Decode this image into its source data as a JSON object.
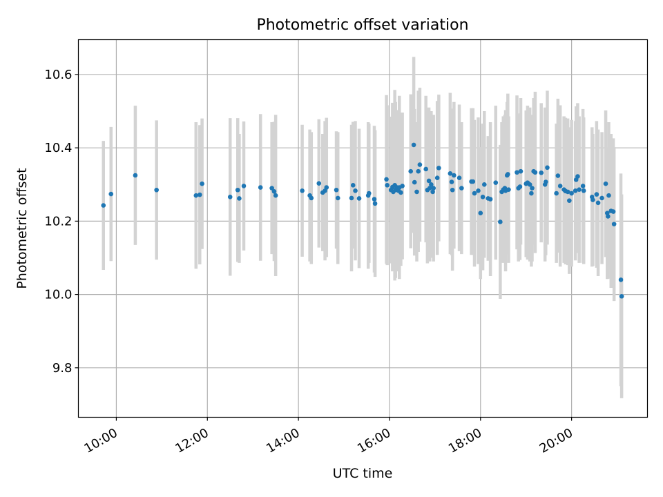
{
  "chart_data": {
    "type": "scatter",
    "title": "Photometric offset variation",
    "xlabel": "UTC time",
    "ylabel": "Photometric offset",
    "x_unit": "hours UTC",
    "xlim": [
      "09:10",
      "21:40"
    ],
    "ylim": [
      9.665,
      10.695
    ],
    "x_ticks": [
      {
        "value": "10:00",
        "label": "10:00"
      },
      {
        "value": "12:00",
        "label": "12:00"
      },
      {
        "value": "14:00",
        "label": "14:00"
      },
      {
        "value": "16:00",
        "label": "16:00"
      },
      {
        "value": "18:00",
        "label": "18:00"
      },
      {
        "value": "20:00",
        "label": "20:00"
      }
    ],
    "y_ticks": [
      {
        "value": 9.8,
        "label": "9.8"
      },
      {
        "value": 10.0,
        "label": "10.0"
      },
      {
        "value": 10.2,
        "label": "10.2"
      },
      {
        "value": 10.4,
        "label": "10.4"
      },
      {
        "value": 10.6,
        "label": "10.6"
      }
    ],
    "grid": true,
    "marker_color": "#1f77b4",
    "errorbar_color": "#d3d3d3",
    "series": [
      {
        "points": [
          {
            "x": "09:43",
            "y": 10.243,
            "err": 0.176
          },
          {
            "x": "09:53",
            "y": 10.274,
            "err": 0.183
          },
          {
            "x": "10:25",
            "y": 10.325,
            "err": 0.19
          },
          {
            "x": "10:53",
            "y": 10.285,
            "err": 0.19
          },
          {
            "x": "11:45",
            "y": 10.27,
            "err": 0.2
          },
          {
            "x": "11:50",
            "y": 10.272,
            "err": 0.19
          },
          {
            "x": "11:53",
            "y": 10.302,
            "err": 0.178
          },
          {
            "x": "12:30",
            "y": 10.266,
            "err": 0.215
          },
          {
            "x": "12:40",
            "y": 10.285,
            "err": 0.196
          },
          {
            "x": "12:42",
            "y": 10.262,
            "err": 0.176
          },
          {
            "x": "12:48",
            "y": 10.296,
            "err": 0.176
          },
          {
            "x": "13:10",
            "y": 10.292,
            "err": 0.2
          },
          {
            "x": "13:25",
            "y": 10.29,
            "err": 0.18
          },
          {
            "x": "13:28",
            "y": 10.281,
            "err": 0.19
          },
          {
            "x": "13:30",
            "y": 10.27,
            "err": 0.22
          },
          {
            "x": "14:05",
            "y": 10.283,
            "err": 0.18
          },
          {
            "x": "14:15",
            "y": 10.27,
            "err": 0.18
          },
          {
            "x": "14:17",
            "y": 10.263,
            "err": 0.18
          },
          {
            "x": "14:27",
            "y": 10.303,
            "err": 0.175
          },
          {
            "x": "14:32",
            "y": 10.278,
            "err": 0.16
          },
          {
            "x": "14:35",
            "y": 10.283,
            "err": 0.19
          },
          {
            "x": "14:37",
            "y": 10.292,
            "err": 0.19
          },
          {
            "x": "14:50",
            "y": 10.285,
            "err": 0.16
          },
          {
            "x": "14:52",
            "y": 10.263,
            "err": 0.18
          },
          {
            "x": "15:10",
            "y": 10.263,
            "err": 0.2
          },
          {
            "x": "15:12",
            "y": 10.298,
            "err": 0.173
          },
          {
            "x": "15:15",
            "y": 10.283,
            "err": 0.19
          },
          {
            "x": "15:20",
            "y": 10.262,
            "err": 0.19
          },
          {
            "x": "15:32",
            "y": 10.27,
            "err": 0.2
          },
          {
            "x": "15:33",
            "y": 10.276,
            "err": 0.19
          },
          {
            "x": "15:40",
            "y": 10.26,
            "err": 0.2
          },
          {
            "x": "15:41",
            "y": 10.248,
            "err": 0.2
          },
          {
            "x": "15:56",
            "y": 10.314,
            "err": 0.23
          },
          {
            "x": "15:57",
            "y": 10.298,
            "err": 0.218
          },
          {
            "x": "16:02",
            "y": 10.285,
            "err": 0.2
          },
          {
            "x": "16:04",
            "y": 10.293,
            "err": 0.23
          },
          {
            "x": "16:05",
            "y": 10.28,
            "err": 0.2
          },
          {
            "x": "16:07",
            "y": 10.298,
            "err": 0.26
          },
          {
            "x": "16:08",
            "y": 10.285,
            "err": 0.24
          },
          {
            "x": "16:10",
            "y": 10.292,
            "err": 0.2
          },
          {
            "x": "16:12",
            "y": 10.283,
            "err": 0.22
          },
          {
            "x": "16:13",
            "y": 10.292,
            "err": 0.25
          },
          {
            "x": "16:15",
            "y": 10.278,
            "err": 0.2
          },
          {
            "x": "16:17",
            "y": 10.296,
            "err": 0.2
          },
          {
            "x": "16:28",
            "y": 10.336,
            "err": 0.21
          },
          {
            "x": "16:32",
            "y": 10.408,
            "err": 0.24
          },
          {
            "x": "16:33",
            "y": 10.306,
            "err": 0.2
          },
          {
            "x": "16:36",
            "y": 10.28,
            "err": 0.19
          },
          {
            "x": "16:38",
            "y": 10.336,
            "err": 0.22
          },
          {
            "x": "16:40",
            "y": 10.354,
            "err": 0.21
          },
          {
            "x": "16:48",
            "y": 10.342,
            "err": 0.2
          },
          {
            "x": "16:50",
            "y": 10.285,
            "err": 0.2
          },
          {
            "x": "16:52",
            "y": 10.31,
            "err": 0.2
          },
          {
            "x": "16:53",
            "y": 10.29,
            "err": 0.2
          },
          {
            "x": "16:55",
            "y": 10.3,
            "err": 0.2
          },
          {
            "x": "16:57",
            "y": 10.28,
            "err": 0.17
          },
          {
            "x": "16:58",
            "y": 10.29,
            "err": 0.2
          },
          {
            "x": "17:03",
            "y": 10.318,
            "err": 0.21
          },
          {
            "x": "17:05",
            "y": 10.345,
            "err": 0.2
          },
          {
            "x": "17:20",
            "y": 10.33,
            "err": 0.22
          },
          {
            "x": "17:22",
            "y": 10.307,
            "err": 0.2
          },
          {
            "x": "17:23",
            "y": 10.285,
            "err": 0.22
          },
          {
            "x": "17:25",
            "y": 10.325,
            "err": 0.2
          },
          {
            "x": "17:32",
            "y": 10.318,
            "err": 0.2
          },
          {
            "x": "17:35",
            "y": 10.29,
            "err": 0.18
          },
          {
            "x": "17:48",
            "y": 10.308,
            "err": 0.2
          },
          {
            "x": "17:50",
            "y": 10.308,
            "err": 0.2
          },
          {
            "x": "17:52",
            "y": 10.276,
            "err": 0.2
          },
          {
            "x": "17:57",
            "y": 10.283,
            "err": 0.2
          },
          {
            "x": "18:00",
            "y": 10.222,
            "err": 0.18
          },
          {
            "x": "18:03",
            "y": 10.266,
            "err": 0.2
          },
          {
            "x": "18:05",
            "y": 10.3,
            "err": 0.2
          },
          {
            "x": "18:10",
            "y": 10.262,
            "err": 0.17
          },
          {
            "x": "18:13",
            "y": 10.26,
            "err": 0.21
          },
          {
            "x": "18:20",
            "y": 10.305,
            "err": 0.21
          },
          {
            "x": "18:26",
            "y": 10.198,
            "err": 0.21
          },
          {
            "x": "18:28",
            "y": 10.28,
            "err": 0.19
          },
          {
            "x": "18:30",
            "y": 10.286,
            "err": 0.2
          },
          {
            "x": "18:32",
            "y": 10.29,
            "err": 0.2
          },
          {
            "x": "18:33",
            "y": 10.283,
            "err": 0.22
          },
          {
            "x": "18:35",
            "y": 10.325,
            "err": 0.2
          },
          {
            "x": "18:36",
            "y": 10.328,
            "err": 0.22
          },
          {
            "x": "18:37",
            "y": 10.286,
            "err": 0.2
          },
          {
            "x": "18:48",
            "y": 10.333,
            "err": 0.21
          },
          {
            "x": "18:50",
            "y": 10.29,
            "err": 0.2
          },
          {
            "x": "18:52",
            "y": 10.294,
            "err": 0.2
          },
          {
            "x": "18:53",
            "y": 10.336,
            "err": 0.2
          },
          {
            "x": "19:00",
            "y": 10.302,
            "err": 0.2
          },
          {
            "x": "19:02",
            "y": 10.305,
            "err": 0.21
          },
          {
            "x": "19:05",
            "y": 10.3,
            "err": 0.21
          },
          {
            "x": "19:07",
            "y": 10.276,
            "err": 0.2
          },
          {
            "x": "19:08",
            "y": 10.29,
            "err": 0.2
          },
          {
            "x": "19:10",
            "y": 10.336,
            "err": 0.2
          },
          {
            "x": "19:12",
            "y": 10.333,
            "err": 0.22
          },
          {
            "x": "19:20",
            "y": 10.332,
            "err": 0.19
          },
          {
            "x": "19:25",
            "y": 10.3,
            "err": 0.21
          },
          {
            "x": "19:26",
            "y": 10.307,
            "err": 0.2
          },
          {
            "x": "19:28",
            "y": 10.346,
            "err": 0.21
          },
          {
            "x": "19:40",
            "y": 10.276,
            "err": 0.19
          },
          {
            "x": "19:42",
            "y": 10.324,
            "err": 0.21
          },
          {
            "x": "19:45",
            "y": 10.296,
            "err": 0.22
          },
          {
            "x": "19:50",
            "y": 10.286,
            "err": 0.2
          },
          {
            "x": "19:52",
            "y": 10.282,
            "err": 0.2
          },
          {
            "x": "19:55",
            "y": 10.28,
            "err": 0.2
          },
          {
            "x": "19:57",
            "y": 10.256,
            "err": 0.2
          },
          {
            "x": "20:00",
            "y": 10.276,
            "err": 0.2
          },
          {
            "x": "20:05",
            "y": 10.283,
            "err": 0.19
          },
          {
            "x": "20:06",
            "y": 10.313,
            "err": 0.2
          },
          {
            "x": "20:08",
            "y": 10.322,
            "err": 0.2
          },
          {
            "x": "20:10",
            "y": 10.286,
            "err": 0.2
          },
          {
            "x": "20:15",
            "y": 10.296,
            "err": 0.21
          },
          {
            "x": "20:16",
            "y": 10.283,
            "err": 0.2
          },
          {
            "x": "20:27",
            "y": 10.266,
            "err": 0.19
          },
          {
            "x": "20:28",
            "y": 10.258,
            "err": 0.18
          },
          {
            "x": "20:33",
            "y": 10.273,
            "err": 0.2
          },
          {
            "x": "20:35",
            "y": 10.25,
            "err": 0.2
          },
          {
            "x": "20:40",
            "y": 10.263,
            "err": 0.18
          },
          {
            "x": "20:45",
            "y": 10.302,
            "err": 0.2
          },
          {
            "x": "20:47",
            "y": 10.222,
            "err": 0.18
          },
          {
            "x": "20:48",
            "y": 10.213,
            "err": 0.17
          },
          {
            "x": "20:49",
            "y": 10.27,
            "err": 0.2
          },
          {
            "x": "20:52",
            "y": 10.228,
            "err": 0.21
          },
          {
            "x": "20:55",
            "y": 10.226,
            "err": 0.2
          },
          {
            "x": "20:56",
            "y": 10.192,
            "err": 0.21
          },
          {
            "x": "21:05",
            "y": 10.04,
            "err": 0.29
          },
          {
            "x": "21:06",
            "y": 9.995,
            "err": 0.278
          }
        ]
      }
    ]
  }
}
